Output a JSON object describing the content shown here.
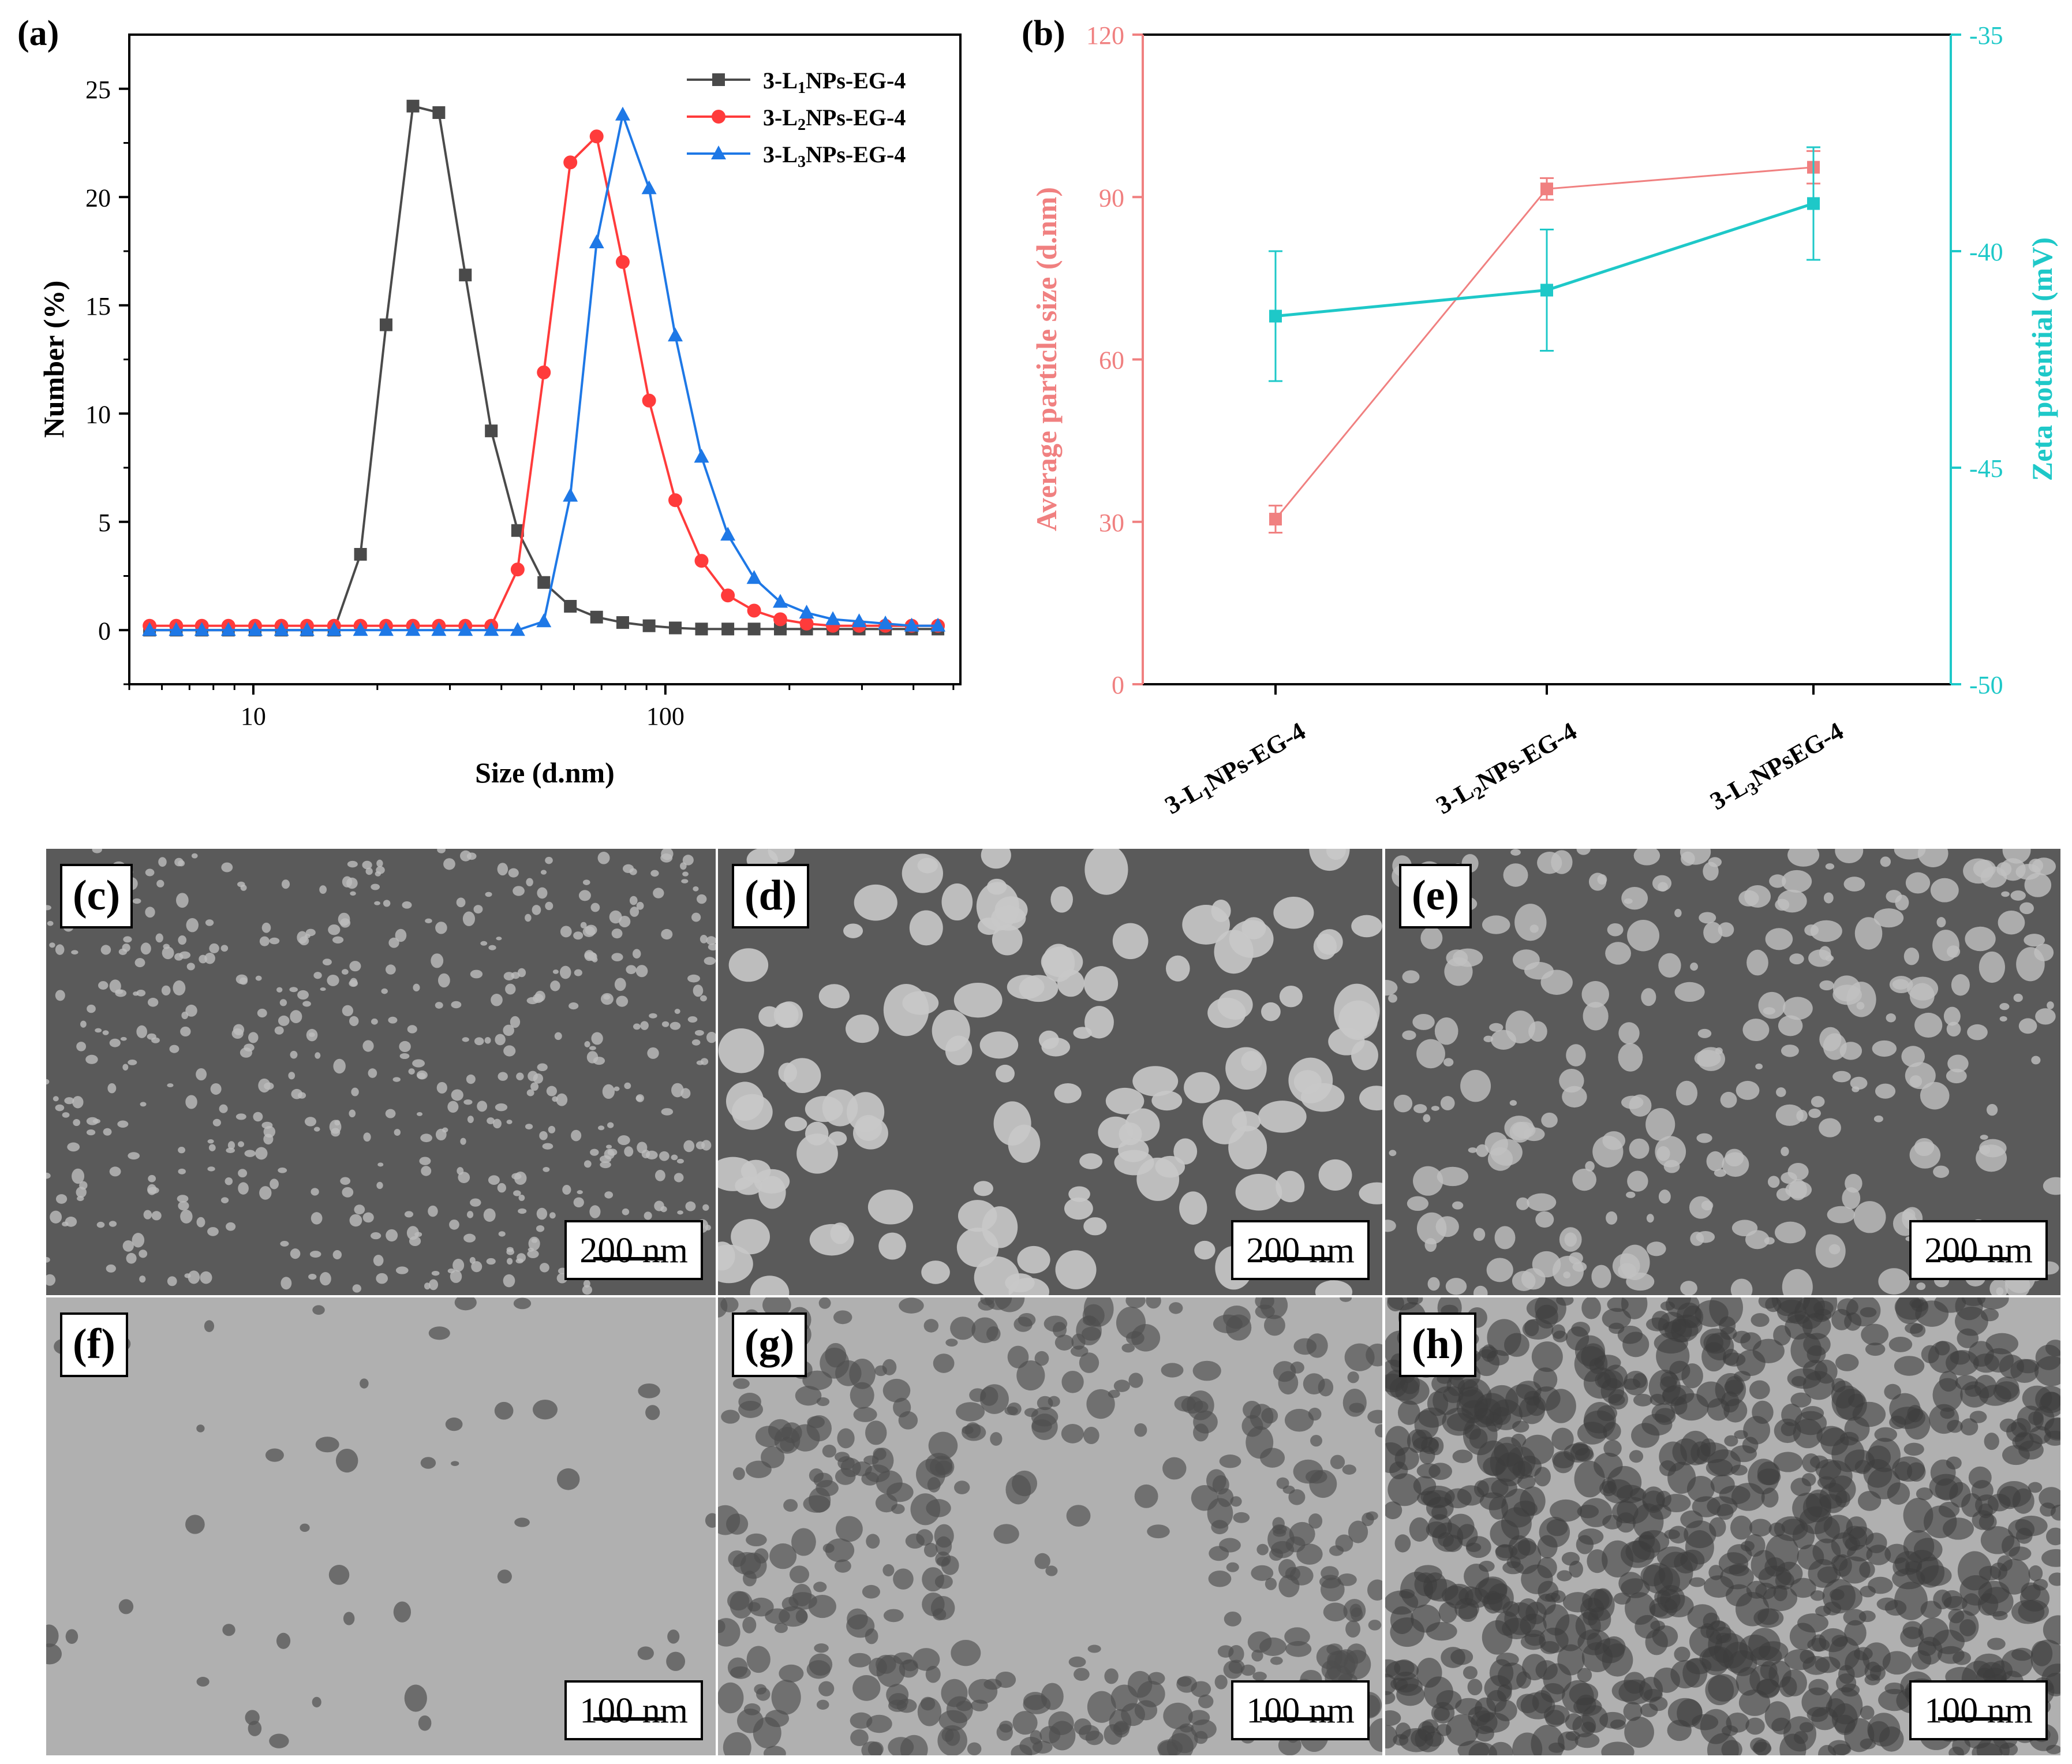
{
  "colors": {
    "gray_series": "#4a4a4a",
    "red_series": "#ff3b3b",
    "blue_series": "#1e78e6",
    "size_axis": "#f08080",
    "zeta_axis": "#1ec8c8",
    "sem_background": "#5a5a5a",
    "tem_background": "#b0b0b0"
  },
  "chart_data": [
    {
      "panel_label": "(a)",
      "type": "line",
      "xscale": "log",
      "xlabel": "Size (d.nm)",
      "ylabel": "Number (%)",
      "xlim": [
        5,
        520
      ],
      "ylim": [
        -2.5,
        27.5
      ],
      "xticks": [
        10,
        100
      ],
      "yticks": [
        0,
        5,
        10,
        15,
        20,
        25
      ],
      "legend_position": "top-right",
      "x": [
        5.6,
        6.5,
        7.5,
        8.7,
        10.1,
        11.7,
        13.5,
        15.7,
        18.2,
        21.0,
        24.4,
        28.2,
        32.7,
        37.8,
        43.8,
        50.7,
        58.8,
        68.1,
        78.8,
        91.3,
        105.7,
        122.4,
        141.8,
        164.2,
        190.1,
        220.2,
        255.0,
        295.3,
        342.0,
        396.1,
        458.7
      ],
      "series": [
        {
          "name": "3-L1NPs-EG-4",
          "name_prefix": "3-L",
          "name_sub": "1",
          "name_suffix": "NPs-EG-4",
          "marker": "square",
          "color": "#4a4a4a",
          "values": [
            0,
            0,
            0,
            0,
            0,
            0,
            0,
            0,
            3.5,
            14.1,
            24.2,
            23.9,
            16.4,
            9.2,
            4.6,
            2.2,
            1.1,
            0.6,
            0.35,
            0.2,
            0.1,
            0.05,
            0.05,
            0.05,
            0.05,
            0.05,
            0.05,
            0.05,
            0.05,
            0.05,
            0.05
          ]
        },
        {
          "name": "3-L2NPs-EG-4",
          "name_prefix": "3-L",
          "name_sub": "2",
          "name_suffix": "NPs-EG-4",
          "marker": "circle",
          "color": "#ff3b3b",
          "values": [
            0.2,
            0.2,
            0.2,
            0.2,
            0.2,
            0.2,
            0.2,
            0.2,
            0.2,
            0.2,
            0.2,
            0.2,
            0.2,
            0.2,
            2.8,
            11.9,
            21.6,
            22.8,
            17.0,
            10.6,
            6.0,
            3.2,
            1.6,
            0.9,
            0.5,
            0.3,
            0.2,
            0.2,
            0.2,
            0.2,
            0.2
          ]
        },
        {
          "name": "3-L3NPs-EG-4",
          "name_prefix": "3-L",
          "name_sub": "3",
          "name_suffix": "NPs-EG-4",
          "marker": "triangle",
          "color": "#1e78e6",
          "values": [
            0,
            0,
            0,
            0,
            0,
            0,
            0,
            0,
            0,
            0,
            0,
            0,
            0,
            0,
            0,
            0.4,
            6.2,
            17.9,
            23.8,
            20.4,
            13.6,
            8.0,
            4.4,
            2.4,
            1.3,
            0.8,
            0.5,
            0.4,
            0.3,
            0.2,
            0.2
          ]
        }
      ]
    },
    {
      "panel_label": "(b)",
      "type": "line",
      "categories": [
        "3-L1NPs-EG-4",
        "3-L2NPs-EG-4",
        "3-L3NPsEG-4"
      ],
      "category_parts": [
        {
          "prefix": "3-L",
          "sub": "1",
          "suffix": "NPs-EG-4"
        },
        {
          "prefix": "3-L",
          "sub": "2",
          "suffix": "NPs-EG-4"
        },
        {
          "prefix": "3-L",
          "sub": "3",
          "suffix": "NPsEG-4"
        }
      ],
      "ylabel": "Average particle size (d.nm)",
      "ylim": [
        0,
        120
      ],
      "yticks": [
        0,
        30,
        60,
        90,
        120
      ],
      "y2label": "Zeta potential (mV)",
      "y2lim": [
        -50,
        -35
      ],
      "y2ticks": [
        -50,
        -45,
        -40,
        -35
      ],
      "series": [
        {
          "axis": "left",
          "color": "#f08080",
          "marker": "square",
          "values": [
            30.5,
            91.5,
            95.5
          ],
          "errors": [
            2.5,
            2.0,
            3.0
          ]
        },
        {
          "axis": "right",
          "color": "#1ec8c8",
          "marker": "square",
          "values": [
            -41.5,
            -40.9,
            -38.9
          ],
          "errors": [
            1.5,
            1.4,
            1.3
          ]
        }
      ]
    }
  ],
  "micrographs": [
    {
      "label": "(c)",
      "scale": "200 nm",
      "kind": "sem-small"
    },
    {
      "label": "(d)",
      "scale": "200 nm",
      "kind": "sem-large"
    },
    {
      "label": "(e)",
      "scale": "200 nm",
      "kind": "sem-mixed"
    },
    {
      "label": "(f)",
      "scale": "100 nm",
      "kind": "tem-sparse"
    },
    {
      "label": "(g)",
      "scale": "100 nm",
      "kind": "tem-network"
    },
    {
      "label": "(h)",
      "scale": "100 nm",
      "kind": "tem-dense"
    }
  ]
}
